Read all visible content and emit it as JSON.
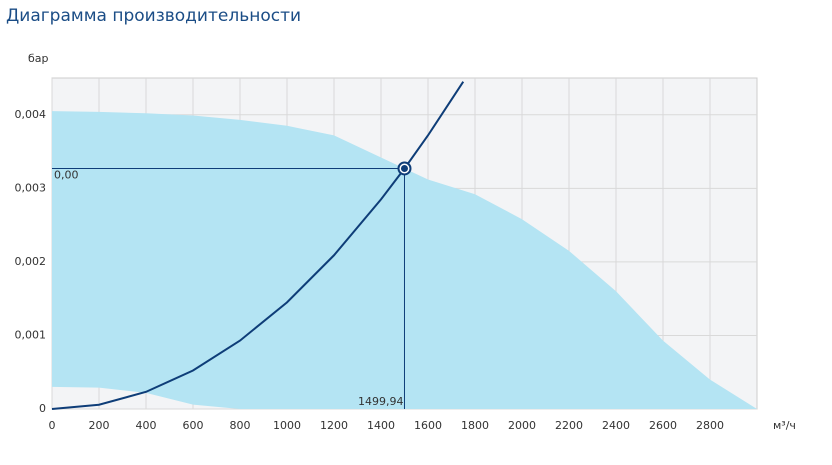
{
  "chart_data": {
    "type": "performance",
    "title": "Диаграмма производительности",
    "y_label": "бар",
    "x_label": "м³/ч",
    "xlim": [
      0,
      3000
    ],
    "ylim": [
      0,
      0.0045
    ],
    "xticks": [
      0,
      200,
      400,
      600,
      800,
      1000,
      1200,
      1400,
      1600,
      1800,
      2000,
      2200,
      2400,
      2600,
      2800
    ],
    "yticks": [
      0,
      {
        "value": 0.001,
        "label": "0,001"
      },
      {
        "value": 0.002,
        "label": "0,002"
      },
      {
        "value": 0.003,
        "label": "0,003"
      },
      {
        "value": 0.004,
        "label": "0,004"
      }
    ],
    "grid": true,
    "area": {
      "color": "#b4e4f3",
      "x": [
        0,
        200,
        400,
        600,
        800,
        1000,
        1200,
        1400,
        1600,
        1800,
        2000,
        2200,
        2400,
        2600,
        2800,
        3000
      ],
      "upper": [
        0.00405,
        0.00404,
        0.00402,
        0.00399,
        0.00393,
        0.00385,
        0.00372,
        0.00342,
        0.00312,
        0.00292,
        0.00258,
        0.00215,
        0.0016,
        0.00093,
        0.0004,
        0
      ],
      "lower": [
        0.0003,
        0.00029,
        0.00022,
        6e-05,
        0,
        0,
        0,
        0,
        0,
        0,
        0,
        0,
        0,
        0,
        0,
        0
      ]
    },
    "curve": {
      "color": "#0e3d78",
      "x": [
        0,
        200,
        400,
        600,
        800,
        1000,
        1200,
        1400,
        1500,
        1600,
        1750
      ],
      "values": [
        0,
        5.8e-05,
        0.000233,
        0.000523,
        0.00093,
        0.00145,
        0.00209,
        0.00285,
        0.00327,
        0.00372,
        0.00445
      ]
    },
    "point": {
      "x": 1499.94,
      "y": 0.00327,
      "x_label": "1499,94",
      "y_label": "0,00"
    }
  }
}
